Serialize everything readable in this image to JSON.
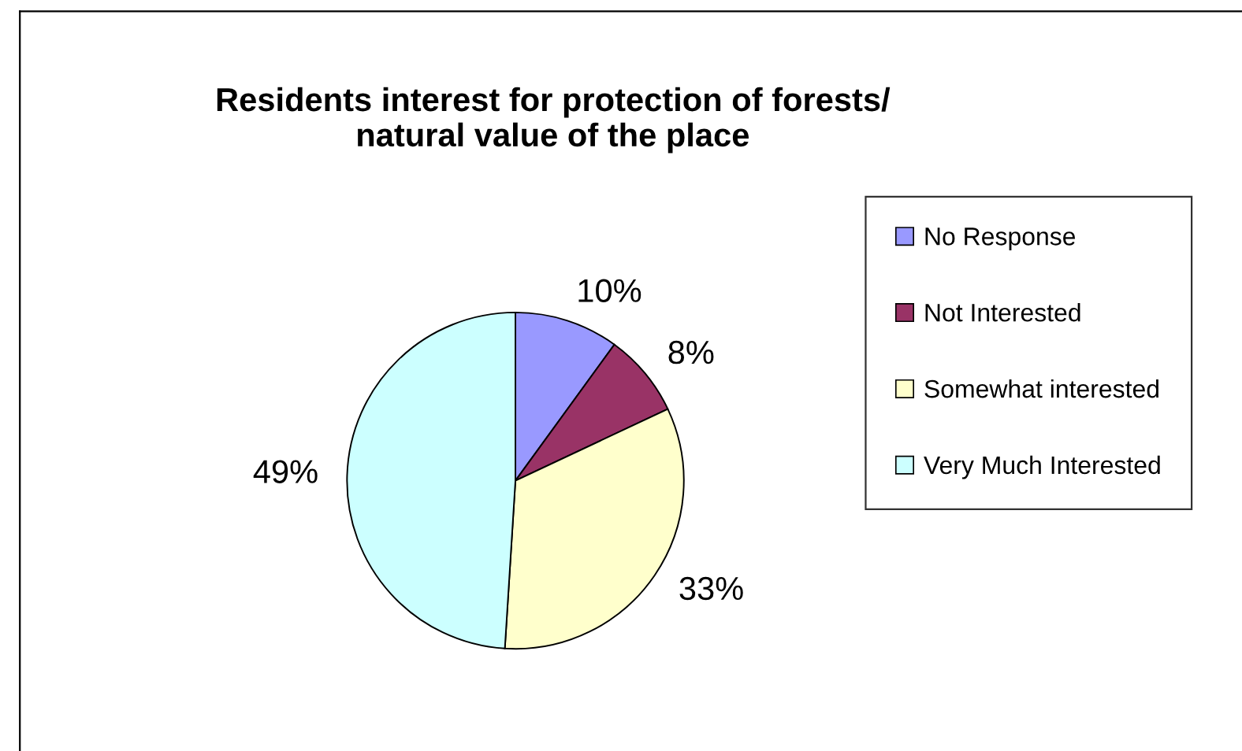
{
  "chart_data": {
    "type": "pie",
    "title": "Residents interest for protection of forests/\nnatural value of the place",
    "categories": [
      "No Response",
      "Not Interested",
      "Somewhat interested",
      "Very Much Interested"
    ],
    "values": [
      10,
      8,
      33,
      49
    ],
    "colors": [
      "#9999ff",
      "#993366",
      "#ffffcc",
      "#ccffff"
    ],
    "value_labels": [
      "10%",
      "8%",
      "33%",
      "49%"
    ],
    "legend": "right"
  }
}
